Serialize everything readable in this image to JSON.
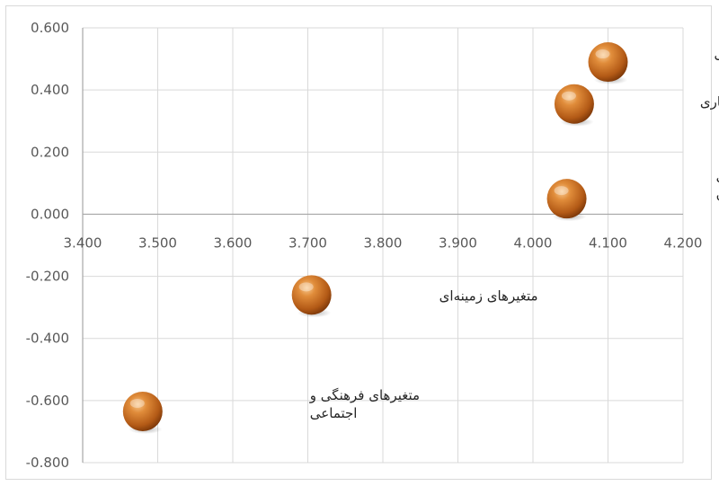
{
  "chart_data": {
    "type": "scatter",
    "title": "",
    "xlabel": "",
    "ylabel": "",
    "xlim": [
      3.4,
      4.2
    ],
    "ylim": [
      -0.8,
      0.6
    ],
    "x_ticks": [
      "3.400",
      "3.500",
      "3.600",
      "3.700",
      "3.800",
      "3.900",
      "4.000",
      "4.100",
      "4.200"
    ],
    "y_ticks": [
      "0.600",
      "0.400",
      "0.200",
      "0.000",
      "-0.200",
      "-0.400",
      "-0.600",
      "-0.800"
    ],
    "grid": true,
    "marker_color": "#d07a2c",
    "points": [
      {
        "label": [
          "متغیرهای مقرراتی"
        ],
        "x": 4.1,
        "y": 0.49
      },
      {
        "label": [
          "متغیرهای ساختاری"
        ],
        "x": 4.055,
        "y": 0.355
      },
      {
        "label": [
          "متغیرهای عملکردی",
          "سازمان"
        ],
        "x": 4.045,
        "y": 0.05
      },
      {
        "label": [
          "متغیرهای زمینه‌ای"
        ],
        "x": 3.705,
        "y": -0.26
      },
      {
        "label": [
          "متغیرهای فرهنگی و",
          "اجتماعی"
        ],
        "x": 3.48,
        "y": -0.635
      }
    ]
  }
}
